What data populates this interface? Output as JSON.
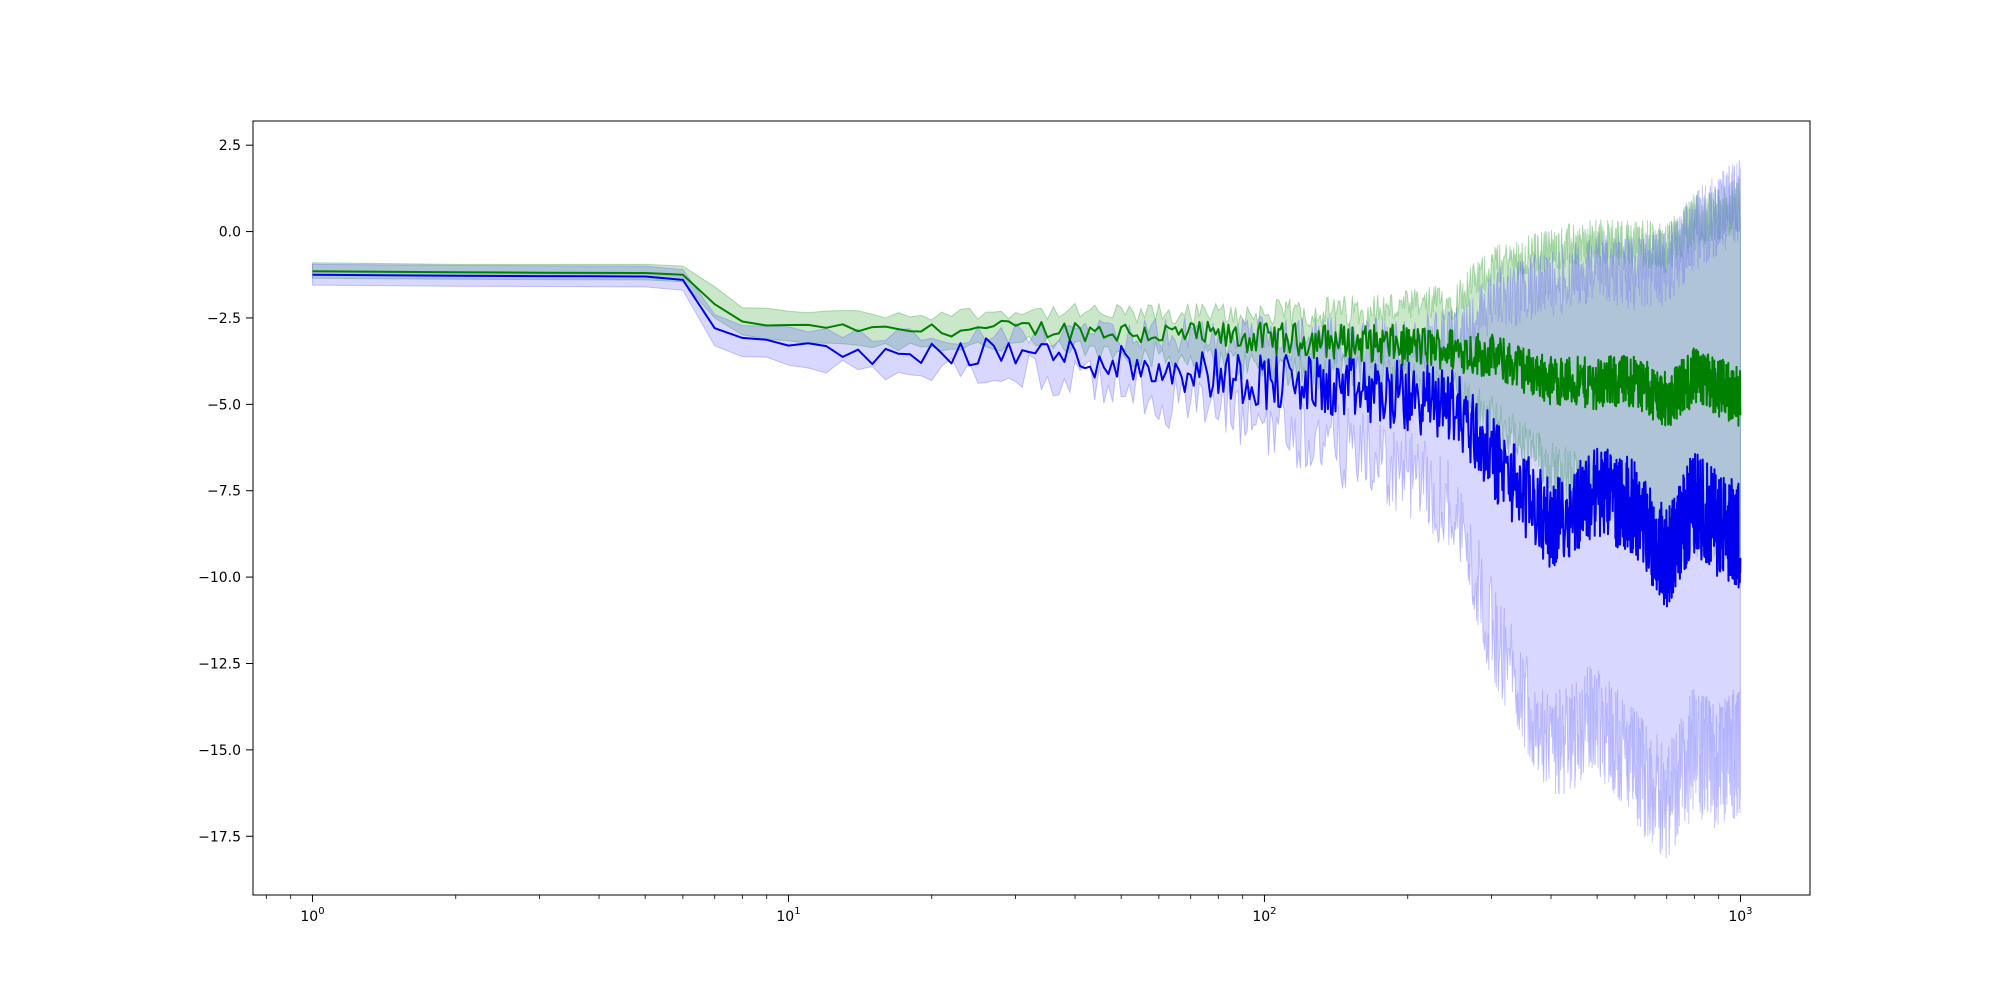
{
  "chart_data": {
    "type": "line",
    "title": "",
    "xlabel": "",
    "ylabel": "",
    "xscale": "log",
    "xlim": [
      0.75,
      1400
    ],
    "ylim": [
      -19.2,
      3.2
    ],
    "grid": false,
    "legend": "none",
    "x_ticks": [
      {
        "base": "10",
        "exp": "0",
        "value": 1
      },
      {
        "base": "10",
        "exp": "1",
        "value": 10
      },
      {
        "base": "10",
        "exp": "2",
        "value": 100
      },
      {
        "base": "10",
        "exp": "3",
        "value": 1000
      }
    ],
    "y_ticks": [
      {
        "label": "2.5",
        "value": 2.5
      },
      {
        "label": "0.0",
        "value": 0.0
      },
      {
        "label": "−2.5",
        "value": -2.5
      },
      {
        "label": "−5.0",
        "value": -5.0
      },
      {
        "label": "−7.5",
        "value": -7.5
      },
      {
        "label": "−10.0",
        "value": -10.0
      },
      {
        "label": "−12.5",
        "value": -12.5
      },
      {
        "label": "−15.0",
        "value": -15.0
      },
      {
        "label": "−17.5",
        "value": -17.5
      }
    ],
    "series": [
      {
        "color": "#008000",
        "band_color": "#2ca02c",
        "x": [
          1,
          2,
          5,
          6,
          7,
          8,
          9,
          10,
          12,
          15,
          20,
          30,
          40,
          50,
          70,
          100,
          150,
          200,
          250,
          300,
          400,
          500,
          600,
          700,
          800,
          900,
          1000
        ],
        "mean": [
          -1.15,
          -1.18,
          -1.2,
          -1.25,
          -2.1,
          -2.6,
          -2.7,
          -2.75,
          -2.75,
          -2.85,
          -2.85,
          -2.8,
          -2.85,
          -2.9,
          -3.0,
          -3.1,
          -3.2,
          -3.3,
          -3.4,
          -3.6,
          -4.3,
          -4.4,
          -4.3,
          -4.9,
          -4.2,
          -4.5,
          -4.8
        ],
        "lower": [
          -1.35,
          -1.38,
          -1.4,
          -1.45,
          -2.5,
          -3.0,
          -3.1,
          -3.15,
          -3.2,
          -3.3,
          -3.3,
          -3.3,
          -3.4,
          -3.5,
          -3.7,
          -3.9,
          -4.1,
          -4.3,
          -4.6,
          -5.5,
          -6.8,
          -7.5,
          -8.0,
          -9.0,
          -8.5,
          -8.5,
          -9.0
        ],
        "upper": [
          -0.9,
          -0.95,
          -0.95,
          -1.0,
          -1.6,
          -2.2,
          -2.25,
          -2.3,
          -2.3,
          -2.4,
          -2.4,
          -2.3,
          -2.35,
          -2.4,
          -2.4,
          -2.4,
          -2.3,
          -2.2,
          -2.0,
          -1.0,
          -0.5,
          -0.3,
          -0.3,
          -0.5,
          0.3,
          0.5,
          0.8
        ]
      },
      {
        "color": "#0000ee",
        "band_color": "#6060ff",
        "x": [
          1,
          2,
          5,
          6,
          7,
          8,
          9,
          10,
          12,
          15,
          20,
          30,
          40,
          50,
          70,
          100,
          150,
          200,
          250,
          300,
          400,
          500,
          600,
          700,
          800,
          900,
          1000
        ],
        "mean": [
          -1.25,
          -1.28,
          -1.3,
          -1.4,
          -2.8,
          -3.1,
          -3.2,
          -3.3,
          -3.4,
          -3.6,
          -3.5,
          -3.5,
          -3.6,
          -3.8,
          -4.0,
          -4.3,
          -4.6,
          -4.8,
          -5.0,
          -6.5,
          -8.5,
          -7.5,
          -8.0,
          -9.5,
          -7.8,
          -8.5,
          -8.8
        ],
        "lower": [
          -1.55,
          -1.58,
          -1.6,
          -1.7,
          -3.3,
          -3.6,
          -3.7,
          -3.8,
          -3.9,
          -4.0,
          -4.0,
          -4.1,
          -4.3,
          -4.5,
          -5.0,
          -5.5,
          -6.3,
          -7.0,
          -8.0,
          -11.5,
          -15.0,
          -14.0,
          -15.5,
          -16.5,
          -15.0,
          -15.5,
          -15.0
        ],
        "upper": [
          -0.95,
          -0.98,
          -1.0,
          -1.1,
          -2.4,
          -2.7,
          -2.75,
          -2.8,
          -2.9,
          -3.0,
          -3.0,
          -3.0,
          -3.0,
          -3.0,
          -3.0,
          -3.1,
          -3.2,
          -3.3,
          -3.0,
          -2.0,
          -1.5,
          -1.0,
          -1.2,
          -1.0,
          0.0,
          0.5,
          1.0
        ]
      }
    ]
  }
}
